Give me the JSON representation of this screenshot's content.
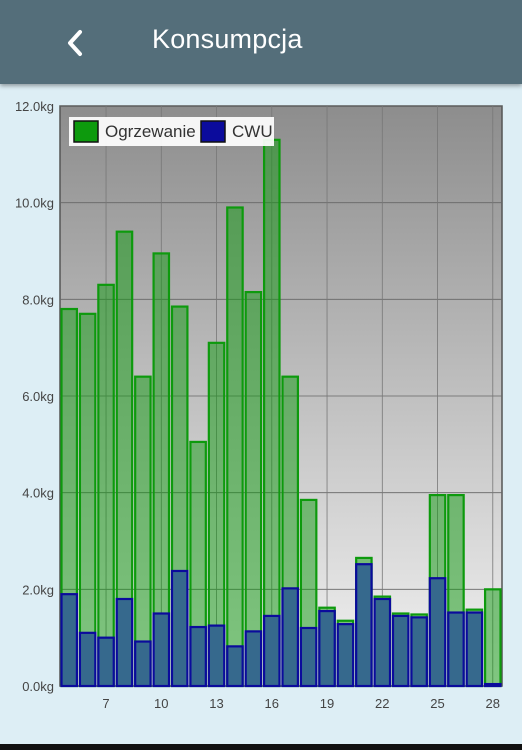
{
  "header": {
    "title": "Konsumpcja",
    "back_icon": "chevron-left-icon"
  },
  "chart_data": {
    "type": "bar",
    "title": "",
    "xlabel": "",
    "ylabel": "",
    "unit": "kg",
    "x": [
      5,
      6,
      7,
      8,
      9,
      10,
      11,
      12,
      13,
      14,
      15,
      16,
      17,
      18,
      19,
      20,
      21,
      22,
      23,
      24,
      25,
      26,
      27,
      28
    ],
    "x_ticks": [
      "7",
      "10",
      "13",
      "16",
      "19",
      "22",
      "25",
      "28"
    ],
    "y_ticks": [
      "0.0kg",
      "2.0kg",
      "4.0kg",
      "6.0kg",
      "8.0kg",
      "10.0kg",
      "12.0kg"
    ],
    "ylim": [
      0,
      12
    ],
    "grid": true,
    "legend_position": "top-left",
    "series": [
      {
        "name": "Ogrzewanie",
        "color": "#0d9a0d",
        "values": [
          7.8,
          7.7,
          8.3,
          9.4,
          6.4,
          8.95,
          7.85,
          5.05,
          7.1,
          9.9,
          8.15,
          11.3,
          6.4,
          3.85,
          1.62,
          1.35,
          2.65,
          1.85,
          1.5,
          1.48,
          3.95,
          3.95,
          1.58,
          2.0
        ]
      },
      {
        "name": "CWU",
        "color": "#0b0b9c",
        "values": [
          1.9,
          1.1,
          1.0,
          1.8,
          0.92,
          1.5,
          2.38,
          1.22,
          1.25,
          0.82,
          1.13,
          1.45,
          2.02,
          1.2,
          1.55,
          1.28,
          2.52,
          1.8,
          1.45,
          1.42,
          2.23,
          1.52,
          1.52,
          0.04
        ]
      }
    ]
  }
}
